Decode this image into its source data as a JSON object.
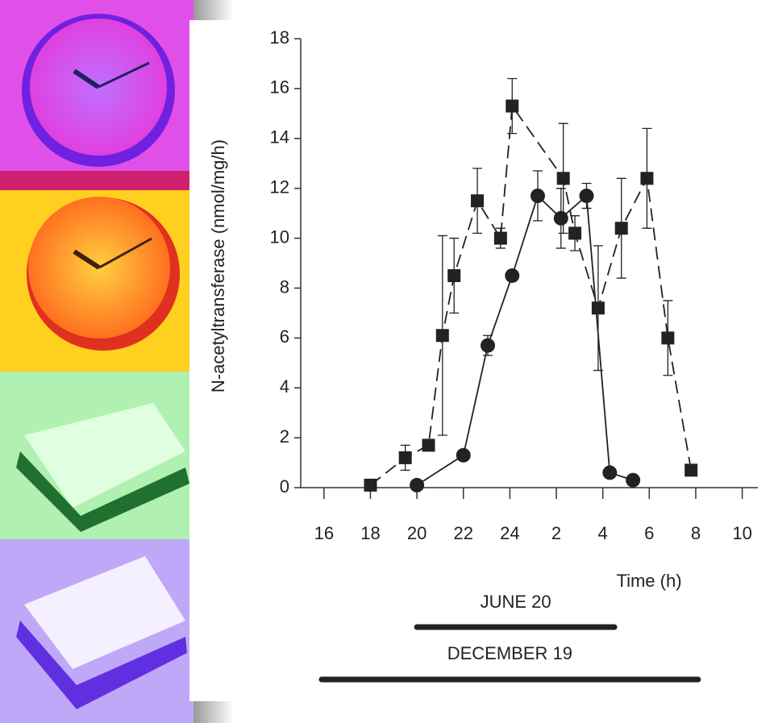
{
  "chart_data": {
    "type": "line",
    "ylabel": "N-acetyltransferase (nmol/mg/h)",
    "xlabel": "Time (h)",
    "xlim": [
      15,
      34.5
    ],
    "ylim": [
      0,
      18
    ],
    "xticks": [
      16,
      18,
      20,
      22,
      24,
      {
        "value": 26,
        "label": "2"
      },
      {
        "value": 28,
        "label": "4"
      },
      {
        "value": 30,
        "label": "6"
      },
      {
        "value": 32,
        "label": "8"
      },
      {
        "value": 34,
        "label": "10"
      }
    ],
    "yticks": [
      0,
      2,
      4,
      6,
      8,
      10,
      12,
      14,
      16,
      18
    ],
    "series": [
      {
        "marker": "square",
        "dash": true,
        "color": "#222",
        "x": [
          18,
          19.5,
          20.5,
          21.1,
          21.6,
          22.6,
          23.6,
          24.1,
          26.3,
          26.8,
          27.8,
          28.8,
          29.9,
          30.8,
          31.8
        ],
        "values": [
          0.1,
          1.2,
          1.7,
          6.1,
          8.5,
          11.5,
          10.0,
          15.3,
          12.4,
          10.2,
          7.2,
          10.4,
          12.4,
          6.0,
          0.7
        ],
        "errors": [
          0,
          0.5,
          0,
          4,
          1.5,
          1.3,
          0.4,
          1.1,
          2.2,
          0.7,
          2.5,
          2,
          2,
          1.5,
          0
        ]
      },
      {
        "marker": "circle",
        "dash": false,
        "color": "#222",
        "x": [
          20,
          22,
          23.05,
          24.1,
          25.2,
          26.2,
          27.3,
          28.3,
          29.3
        ],
        "values": [
          0.1,
          1.3,
          5.7,
          8.5,
          11.7,
          10.8,
          11.7,
          0.6,
          0.3
        ],
        "errors": [
          0,
          0,
          0.4,
          0.2,
          1,
          1.2,
          0.5,
          0,
          0
        ]
      }
    ],
    "night_bars": [
      {
        "label": "JUNE 20",
        "start": 20,
        "end": 28.5
      },
      {
        "label": "DECEMBER 19",
        "start": 15.9,
        "end": 32.1
      }
    ]
  }
}
